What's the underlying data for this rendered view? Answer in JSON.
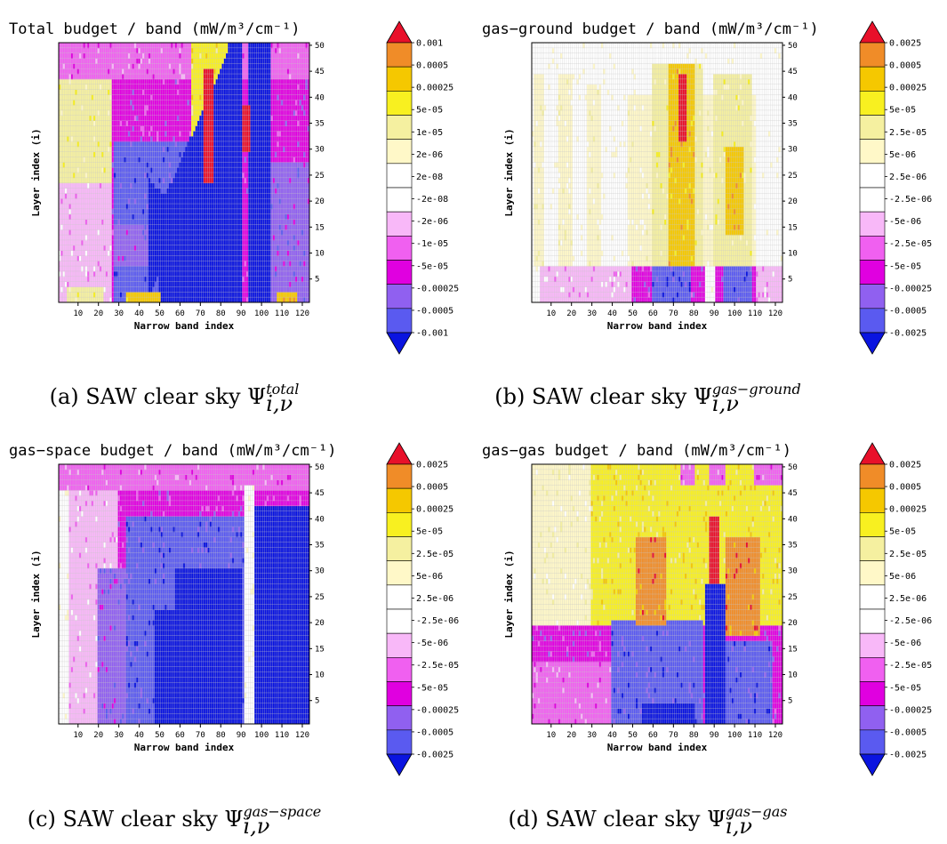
{
  "chart_data": [
    {
      "type": "heatmap",
      "title": "Total budget / band (mW/m³/cm⁻¹)",
      "xlabel": "Narrow band index",
      "ylabel": "Layer index (i)",
      "x_ticks": [
        "10",
        "20",
        "30",
        "40",
        "50",
        "60",
        "70",
        "80",
        "90",
        "100",
        "110",
        "120"
      ],
      "y_ticks": [
        "5",
        "10",
        "15",
        "20",
        "25",
        "30",
        "35",
        "40",
        "45",
        "50"
      ],
      "xlim": [
        1,
        123
      ],
      "ylim": [
        1,
        50
      ],
      "colorbar": [
        "0.001",
        "0.0005",
        "0.00025",
        "5e-05",
        "1e-05",
        "2e-06",
        "2e-08",
        "-2e-08",
        "-2e-06",
        "-1e-05",
        "-5e-05",
        "-0.00025",
        "-0.0005",
        "-0.001"
      ],
      "caption_prefix": "(a) SAW clear sky Ψ",
      "caption_sup": "total",
      "caption_sub": "i,ν",
      "variant": "total"
    },
    {
      "type": "heatmap",
      "title": "gas−ground budget / band (mW/m³/cm⁻¹)",
      "xlabel": "Narrow band index",
      "ylabel": "Layer index (i)",
      "x_ticks": [
        "10",
        "20",
        "30",
        "40",
        "50",
        "60",
        "70",
        "80",
        "90",
        "100",
        "110",
        "120"
      ],
      "y_ticks": [
        "5",
        "10",
        "15",
        "20",
        "25",
        "30",
        "35",
        "40",
        "45",
        "50"
      ],
      "xlim": [
        1,
        123
      ],
      "ylim": [
        1,
        50
      ],
      "colorbar": [
        "0.0025",
        "0.0005",
        "0.00025",
        "5e-05",
        "2.5e-05",
        "5e-06",
        "2.5e-06",
        "-2.5e-06",
        "-5e-06",
        "-2.5e-05",
        "-5e-05",
        "-0.00025",
        "-0.0005",
        "-0.0025"
      ],
      "caption_prefix": "(b) SAW clear sky Ψ",
      "caption_sup": "gas−ground",
      "caption_sub": "i,ν",
      "variant": "ground"
    },
    {
      "type": "heatmap",
      "title": "gas−space budget / band (mW/m³/cm⁻¹)",
      "xlabel": "Narrow band index",
      "ylabel": "Layer index (i)",
      "x_ticks": [
        "10",
        "20",
        "30",
        "40",
        "50",
        "60",
        "70",
        "80",
        "90",
        "100",
        "110",
        "120"
      ],
      "y_ticks": [
        "5",
        "10",
        "15",
        "20",
        "25",
        "30",
        "35",
        "40",
        "45",
        "50"
      ],
      "xlim": [
        1,
        123
      ],
      "ylim": [
        1,
        50
      ],
      "colorbar": [
        "0.0025",
        "0.0005",
        "0.00025",
        "5e-05",
        "2.5e-05",
        "5e-06",
        "2.5e-06",
        "-2.5e-06",
        "-5e-06",
        "-2.5e-05",
        "-5e-05",
        "-0.00025",
        "-0.0005",
        "-0.0025"
      ],
      "caption_prefix": "(c) SAW clear sky Ψ",
      "caption_sup": "gas−space",
      "caption_sub": "i,ν",
      "variant": "space"
    },
    {
      "type": "heatmap",
      "title": "gas−gas budget / band (mW/m³/cm⁻¹)",
      "xlabel": "Narrow band index",
      "ylabel": "Layer index (i)",
      "x_ticks": [
        "10",
        "20",
        "30",
        "40",
        "50",
        "60",
        "70",
        "80",
        "90",
        "100",
        "110",
        "120"
      ],
      "y_ticks": [
        "5",
        "10",
        "15",
        "20",
        "25",
        "30",
        "35",
        "40",
        "45",
        "50"
      ],
      "xlim": [
        1,
        123
      ],
      "ylim": [
        1,
        50
      ],
      "colorbar": [
        "0.0025",
        "0.0005",
        "0.00025",
        "5e-05",
        "2.5e-05",
        "5e-06",
        "2.5e-06",
        "-2.5e-06",
        "-5e-06",
        "-2.5e-05",
        "-5e-05",
        "-0.00025",
        "-0.0005",
        "-0.0025"
      ],
      "caption_prefix": "(d) SAW clear sky Ψ",
      "caption_sup": "gas−gas",
      "caption_sub": "i,ν",
      "variant": "gas"
    }
  ],
  "colors": {
    "scale": [
      "#e8102a",
      "#f08c28",
      "#f5c800",
      "#f8f020",
      "#f5f0a0",
      "#fff8c8",
      "#ffffff",
      "#ffffff",
      "#f8b8f8",
      "#f060f0",
      "#e000e0",
      "#9060f0",
      "#5a5af0",
      "#0a14e0"
    ],
    "grid": "#c8c8c8"
  }
}
